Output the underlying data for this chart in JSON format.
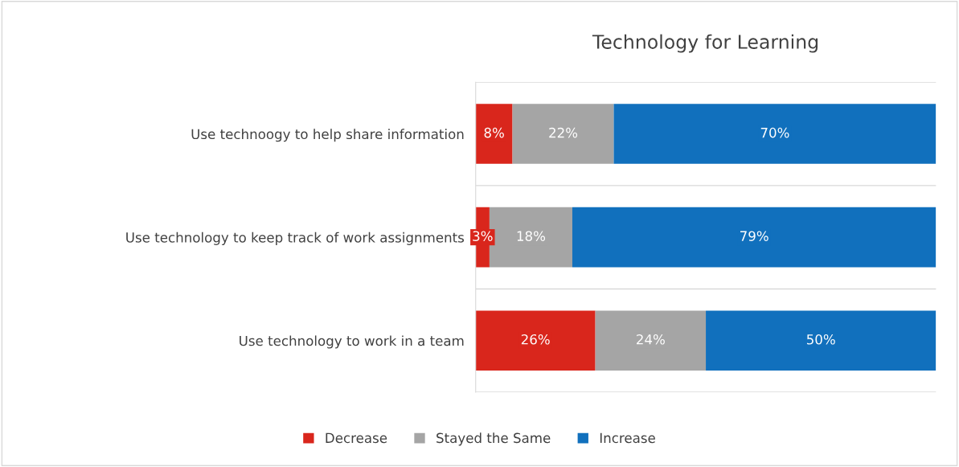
{
  "chart_data": {
    "type": "bar",
    "orientation": "horizontal",
    "stacked": true,
    "title": "Technology for Learning",
    "categories": [
      "Use technoogy to help share information",
      "Use technology to keep track of work assignments",
      "Use technology to work in a team"
    ],
    "series": [
      {
        "name": "Decrease",
        "color": "#d9261c",
        "values": [
          8,
          3,
          26
        ],
        "value_labels": [
          "8%",
          "3%",
          "26%"
        ]
      },
      {
        "name": "Stayed the Same",
        "color": "#a5a5a5",
        "values": [
          22,
          18,
          24
        ],
        "value_labels": [
          "22%",
          "18%",
          "24%"
        ]
      },
      {
        "name": "Increase",
        "color": "#1170bd",
        "values": [
          70,
          79,
          50
        ],
        "value_labels": [
          "70%",
          "79%",
          "50%"
        ]
      }
    ],
    "xlim": [
      0,
      100
    ],
    "tick_labels": "y",
    "grid": "y",
    "legend": "bottom"
  }
}
